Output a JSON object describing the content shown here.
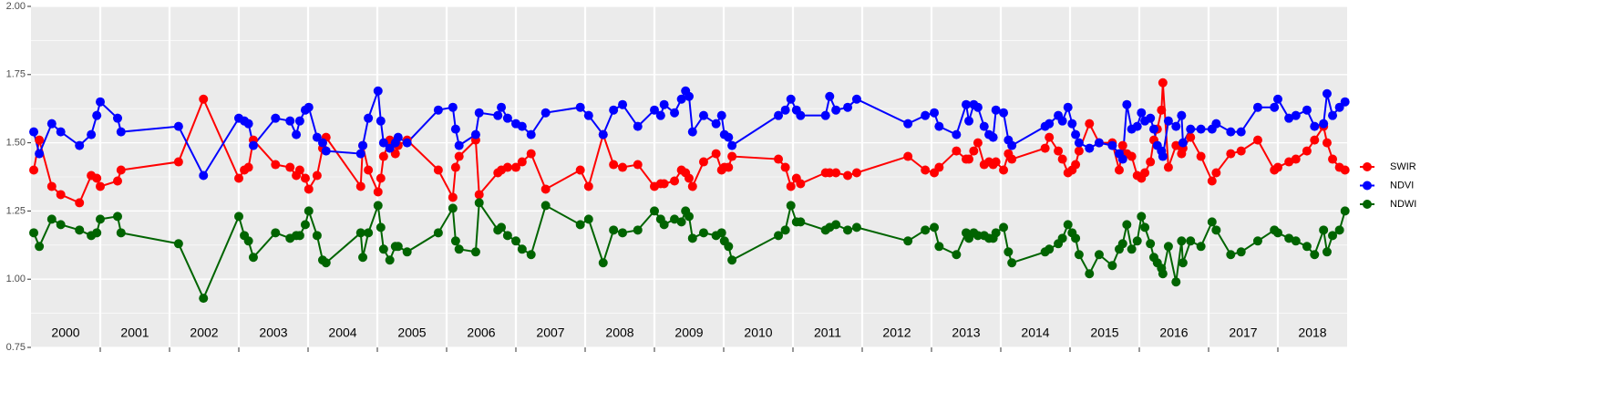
{
  "chart_data": {
    "type": "line",
    "x": [
      2000.04,
      2000.12,
      2000.3,
      2000.43,
      2000.7,
      2000.87,
      2000.95,
      2001.0,
      2001.25,
      2001.3,
      2002.13,
      2002.49,
      2003.0,
      2003.08,
      2003.14,
      2003.21,
      2003.53,
      2003.74,
      2003.83,
      2003.88,
      2003.96,
      2004.01,
      2004.13,
      2004.21,
      2004.26,
      2004.76,
      2004.79,
      2004.87,
      2005.01,
      2005.05,
      2005.09,
      2005.18,
      2005.26,
      2005.3,
      2005.43,
      2005.88,
      2006.09,
      2006.13,
      2006.18,
      2006.42,
      2006.47,
      2006.74,
      2006.79,
      2006.88,
      2007.0,
      2007.09,
      2007.22,
      2007.43,
      2007.93,
      2008.05,
      2008.26,
      2008.41,
      2008.54,
      2008.76,
      2009.0,
      2009.09,
      2009.14,
      2009.29,
      2009.39,
      2009.45,
      2009.5,
      2009.55,
      2009.71,
      2009.89,
      2009.97,
      2010.01,
      2010.07,
      2010.12,
      2010.79,
      2010.89,
      2010.97,
      2011.05,
      2011.11,
      2011.47,
      2011.53,
      2011.62,
      2011.79,
      2011.92,
      2012.66,
      2012.91,
      2013.04,
      2013.11,
      2013.36,
      2013.5,
      2013.54,
      2013.61,
      2013.67,
      2013.76,
      2013.83,
      2013.89,
      2013.93,
      2014.04,
      2014.11,
      2014.16,
      2014.64,
      2014.7,
      2014.83,
      2014.89,
      2014.97,
      2015.03,
      2015.08,
      2015.13,
      2015.28,
      2015.42,
      2015.61,
      2015.71,
      2015.76,
      2015.82,
      2015.89,
      2015.97,
      2016.03,
      2016.08,
      2016.16,
      2016.21,
      2016.26,
      2016.32,
      2016.34,
      2016.42,
      2016.53,
      2016.61,
      2016.63,
      2016.74,
      2016.89,
      2017.05,
      2017.11,
      2017.32,
      2017.47,
      2017.71,
      2017.95,
      2018.0,
      2018.16,
      2018.26,
      2018.42,
      2018.53,
      2018.66,
      2018.71,
      2018.79,
      2018.89,
      2018.97
    ],
    "series": [
      {
        "name": "SWIR",
        "color": "#ff0000",
        "values": [
          1.4,
          1.51,
          1.34,
          1.31,
          1.28,
          1.38,
          1.37,
          1.34,
          1.36,
          1.4,
          1.43,
          1.66,
          1.37,
          1.4,
          1.41,
          1.51,
          1.42,
          1.41,
          1.38,
          1.4,
          1.37,
          1.33,
          1.38,
          1.48,
          1.52,
          1.34,
          1.49,
          1.4,
          1.32,
          1.37,
          1.45,
          1.51,
          1.46,
          1.49,
          1.51,
          1.4,
          1.3,
          1.41,
          1.45,
          1.51,
          1.31,
          1.39,
          1.4,
          1.41,
          1.41,
          1.43,
          1.46,
          1.33,
          1.4,
          1.34,
          1.53,
          1.42,
          1.41,
          1.42,
          1.34,
          1.35,
          1.35,
          1.36,
          1.4,
          1.39,
          1.37,
          1.34,
          1.43,
          1.46,
          1.4,
          1.41,
          1.41,
          1.45,
          1.44,
          1.41,
          1.34,
          1.37,
          1.35,
          1.39,
          1.39,
          1.39,
          1.38,
          1.39,
          1.45,
          1.4,
          1.39,
          1.41,
          1.47,
          1.44,
          1.44,
          1.47,
          1.5,
          1.42,
          1.43,
          1.42,
          1.43,
          1.4,
          1.46,
          1.44,
          1.48,
          1.52,
          1.47,
          1.44,
          1.39,
          1.4,
          1.42,
          1.47,
          1.57,
          1.5,
          1.5,
          1.4,
          1.49,
          1.46,
          1.45,
          1.38,
          1.37,
          1.39,
          1.43,
          1.51,
          1.55,
          1.62,
          1.72,
          1.41,
          1.49,
          1.46,
          1.48,
          1.52,
          1.45,
          1.36,
          1.39,
          1.46,
          1.47,
          1.51,
          1.4,
          1.41,
          1.43,
          1.44,
          1.47,
          1.51,
          1.56,
          1.5,
          1.44,
          1.41,
          1.4
        ]
      },
      {
        "name": "NDVI",
        "color": "#0000ff",
        "values": [
          1.54,
          1.46,
          1.57,
          1.54,
          1.49,
          1.53,
          1.6,
          1.65,
          1.59,
          1.54,
          1.56,
          1.38,
          1.59,
          1.58,
          1.57,
          1.49,
          1.59,
          1.58,
          1.53,
          1.58,
          1.62,
          1.63,
          1.52,
          1.5,
          1.47,
          1.46,
          1.49,
          1.59,
          1.69,
          1.58,
          1.5,
          1.48,
          1.5,
          1.52,
          1.5,
          1.62,
          1.63,
          1.55,
          1.49,
          1.53,
          1.61,
          1.6,
          1.63,
          1.59,
          1.57,
          1.56,
          1.53,
          1.61,
          1.63,
          1.6,
          1.53,
          1.62,
          1.64,
          1.56,
          1.62,
          1.6,
          1.64,
          1.61,
          1.66,
          1.69,
          1.67,
          1.54,
          1.6,
          1.57,
          1.6,
          1.53,
          1.52,
          1.49,
          1.6,
          1.62,
          1.66,
          1.62,
          1.6,
          1.6,
          1.67,
          1.62,
          1.63,
          1.66,
          1.57,
          1.6,
          1.61,
          1.56,
          1.53,
          1.64,
          1.58,
          1.64,
          1.63,
          1.56,
          1.53,
          1.52,
          1.62,
          1.61,
          1.51,
          1.49,
          1.56,
          1.57,
          1.6,
          1.58,
          1.63,
          1.57,
          1.53,
          1.5,
          1.48,
          1.5,
          1.49,
          1.46,
          1.44,
          1.64,
          1.55,
          1.56,
          1.61,
          1.58,
          1.59,
          1.55,
          1.49,
          1.47,
          1.45,
          1.58,
          1.56,
          1.6,
          1.5,
          1.55,
          1.55,
          1.55,
          1.57,
          1.54,
          1.54,
          1.63,
          1.63,
          1.66,
          1.59,
          1.6,
          1.62,
          1.56,
          1.57,
          1.68,
          1.6,
          1.63,
          1.65
        ]
      },
      {
        "name": "NDWI",
        "color": "#006400",
        "values": [
          1.17,
          1.12,
          1.22,
          1.2,
          1.18,
          1.16,
          1.17,
          1.22,
          1.23,
          1.17,
          1.13,
          0.93,
          1.23,
          1.16,
          1.14,
          1.08,
          1.17,
          1.15,
          1.16,
          1.16,
          1.2,
          1.25,
          1.16,
          1.07,
          1.06,
          1.17,
          1.08,
          1.17,
          1.27,
          1.19,
          1.11,
          1.07,
          1.12,
          1.12,
          1.1,
          1.17,
          1.26,
          1.14,
          1.11,
          1.1,
          1.28,
          1.18,
          1.19,
          1.16,
          1.14,
          1.11,
          1.09,
          1.27,
          1.2,
          1.22,
          1.06,
          1.18,
          1.17,
          1.18,
          1.25,
          1.22,
          1.2,
          1.22,
          1.21,
          1.25,
          1.23,
          1.15,
          1.17,
          1.16,
          1.17,
          1.14,
          1.12,
          1.07,
          1.16,
          1.18,
          1.27,
          1.21,
          1.21,
          1.18,
          1.19,
          1.2,
          1.18,
          1.19,
          1.14,
          1.18,
          1.19,
          1.12,
          1.09,
          1.17,
          1.15,
          1.17,
          1.16,
          1.16,
          1.15,
          1.15,
          1.17,
          1.19,
          1.1,
          1.06,
          1.1,
          1.11,
          1.13,
          1.15,
          1.2,
          1.17,
          1.15,
          1.09,
          1.02,
          1.09,
          1.05,
          1.11,
          1.13,
          1.2,
          1.11,
          1.14,
          1.23,
          1.19,
          1.13,
          1.08,
          1.06,
          1.04,
          1.02,
          1.12,
          0.99,
          1.14,
          1.06,
          1.14,
          1.12,
          1.21,
          1.18,
          1.09,
          1.1,
          1.14,
          1.18,
          1.17,
          1.15,
          1.14,
          1.12,
          1.09,
          1.18,
          1.1,
          1.16,
          1.18,
          1.25
        ]
      }
    ],
    "xlim": [
      2000,
      2019
    ],
    "xticks": [
      2000,
      2001,
      2002,
      2003,
      2004,
      2005,
      2006,
      2007,
      2008,
      2009,
      2010,
      2011,
      2012,
      2013,
      2014,
      2015,
      2016,
      2017,
      2018
    ],
    "ylim": [
      0.75,
      2
    ],
    "yticks": [
      0.75,
      {
        "value": 1,
        "label": "1.00"
      },
      1.25,
      {
        "value": 1.5,
        "label": "1.50"
      },
      1.75,
      {
        "value": 2,
        "label": "2.00"
      }
    ],
    "grid": true,
    "legend": "right"
  }
}
